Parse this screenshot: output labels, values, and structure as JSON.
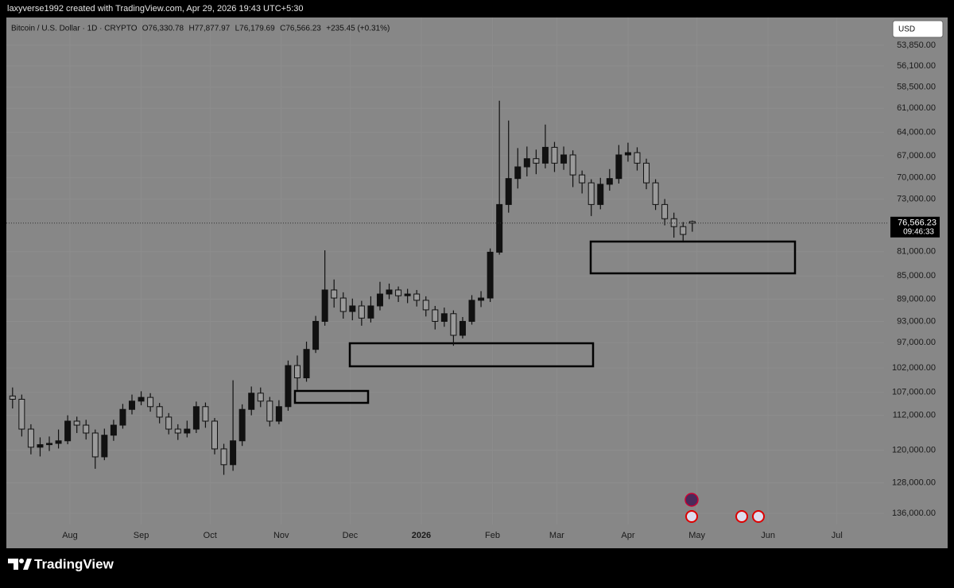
{
  "header": {
    "credit": "laxyverse1992 created with TradingView.com, Apr 29, 2026 19:43 UTC+5:30",
    "symbol": "Bitcoin / U.S. Dollar · 1D · CRYPTO",
    "legend_values": [
      "O76,330.78",
      "H77,877.97",
      "L76,179.69",
      "C76,566.23",
      "+235.45 (+0.31%)"
    ],
    "currency": "USD"
  },
  "chart_data": {
    "type": "candlestick",
    "x": [
      6,
      10,
      14,
      18,
      22,
      26,
      30,
      34,
      38,
      42,
      46,
      50,
      54,
      58,
      62,
      66,
      70,
      74,
      78,
      82,
      86,
      90,
      94,
      98,
      102,
      106,
      110,
      114,
      118,
      122,
      126,
      130,
      134,
      138,
      142,
      146,
      150,
      154,
      158,
      162,
      166,
      170,
      174,
      178,
      182,
      186,
      190,
      194,
      198,
      202,
      206,
      210,
      214,
      218,
      222,
      226,
      230,
      234,
      238,
      242,
      246,
      250,
      254,
      258,
      262,
      266,
      270,
      274,
      278,
      282,
      286,
      290,
      294,
      298,
      302
    ],
    "open": [
      107800,
      108500,
      115100,
      119300,
      118700,
      118400,
      117800,
      113300,
      114200,
      116000,
      121600,
      116500,
      114200,
      110700,
      108900,
      108100,
      110100,
      112400,
      115100,
      116000,
      115100,
      110100,
      113300,
      119700,
      123500,
      117800,
      110700,
      107200,
      108900,
      113300,
      110100,
      101500,
      104000,
      98300,
      93000,
      87400,
      88800,
      91200,
      90200,
      92400,
      90200,
      88100,
      87400,
      88400,
      88100,
      89200,
      90900,
      93000,
      91600,
      95600,
      93000,
      89200,
      88800,
      81100,
      73800,
      70100,
      68500,
      67400,
      68000,
      65900,
      68000,
      66900,
      69600,
      70700,
      73800,
      70900,
      70100,
      66900,
      66600,
      68000,
      70700,
      73800,
      75900,
      77100,
      76330.78
    ],
    "high": [
      110500,
      116800,
      121000,
      121500,
      120200,
      119600,
      118600,
      116000,
      117500,
      124500,
      122400,
      117800,
      115000,
      111800,
      109800,
      111200,
      113800,
      116300,
      117600,
      117000,
      116000,
      114800,
      121000,
      126000,
      125000,
      119000,
      112000,
      110200,
      114500,
      114000,
      111000,
      106500,
      104800,
      99000,
      93800,
      90500,
      92500,
      92800,
      93800,
      93200,
      91000,
      89000,
      89500,
      89700,
      90300,
      92100,
      94500,
      94000,
      97600,
      96200,
      93600,
      90400,
      89500,
      81500,
      75000,
      71500,
      69800,
      69500,
      68700,
      69200,
      68900,
      71300,
      72200,
      75500,
      74500,
      71800,
      70800,
      67800,
      69000,
      71600,
      74600,
      76900,
      78800,
      79400,
      77877.97
    ],
    "low": [
      106000,
      107500,
      114000,
      117000,
      116800,
      115200,
      112000,
      112300,
      113000,
      115200,
      115000,
      113000,
      109500,
      107500,
      106800,
      107200,
      109300,
      111500,
      114000,
      113200,
      109000,
      109200,
      112600,
      118500,
      104500,
      109600,
      105800,
      106000,
      108000,
      108700,
      100500,
      99500,
      96800,
      92000,
      80800,
      85600,
      87800,
      88900,
      89300,
      88500,
      86000,
      86300,
      86800,
      87200,
      87400,
      88500,
      90200,
      90500,
      91000,
      92200,
      88300,
      87600,
      80500,
      60100,
      62500,
      66000,
      65800,
      66200,
      63000,
      65200,
      65800,
      66300,
      69000,
      70200,
      70000,
      68800,
      65600,
      65300,
      65900,
      67400,
      70200,
      73000,
      75000,
      76400,
      76179.69
    ],
    "close": [
      108500,
      115100,
      119300,
      118700,
      118400,
      117800,
      113300,
      114200,
      116000,
      121600,
      116500,
      114200,
      110700,
      108900,
      108100,
      110100,
      112400,
      115100,
      116000,
      115100,
      110100,
      113300,
      119700,
      123500,
      117800,
      110700,
      107200,
      108900,
      113300,
      110100,
      101500,
      104000,
      98300,
      93000,
      87400,
      88800,
      91200,
      90200,
      92400,
      90200,
      88100,
      87400,
      88400,
      88100,
      89200,
      90900,
      93000,
      91600,
      95600,
      93000,
      89200,
      88800,
      81100,
      73800,
      70100,
      68500,
      67400,
      68000,
      65900,
      68000,
      66900,
      69600,
      70700,
      73800,
      70900,
      70100,
      66900,
      66600,
      68000,
      70700,
      73800,
      75900,
      77100,
      78300,
      76566.23
    ],
    "candle_color": "#111111",
    "xlim": [
      3.3,
      385.5
    ],
    "xticks": [
      {
        "value": 31,
        "label": "Aug"
      },
      {
        "value": 62,
        "label": "Sep"
      },
      {
        "value": 92,
        "label": "Oct"
      },
      {
        "value": 123,
        "label": "Nov"
      },
      {
        "value": 153,
        "label": "Dec"
      },
      {
        "value": 184,
        "label": "2026"
      },
      {
        "value": 215,
        "label": "Feb"
      },
      {
        "value": 243,
        "label": "Mar"
      },
      {
        "value": 274,
        "label": "Apr"
      },
      {
        "value": 304,
        "label": "May"
      },
      {
        "value": 335,
        "label": "Jun"
      },
      {
        "value": 365,
        "label": "Jul"
      }
    ],
    "ylim": [
      51000,
      139000
    ],
    "log_y": true,
    "invert_y": true,
    "yticks": [
      {
        "value": 53850,
        "label": "53,850.00"
      },
      {
        "value": 56100,
        "label": "56,100.00"
      },
      {
        "value": 58500,
        "label": "58,500.00"
      },
      {
        "value": 61000,
        "label": "61,000.00"
      },
      {
        "value": 64000,
        "label": "64,000.00"
      },
      {
        "value": 67000,
        "label": "67,000.00"
      },
      {
        "value": 70000,
        "label": "70,000.00"
      },
      {
        "value": 73000,
        "label": "73,000.00"
      },
      {
        "value": 81000,
        "label": "81,000.00"
      },
      {
        "value": 85000,
        "label": "85,000.00"
      },
      {
        "value": 89000,
        "label": "89,000.00"
      },
      {
        "value": 93000,
        "label": "93,000.00"
      },
      {
        "value": 97000,
        "label": "97,000.00"
      },
      {
        "value": 102000,
        "label": "102,000.00"
      },
      {
        "value": 107000,
        "label": "107,000.00"
      },
      {
        "value": 112000,
        "label": "112,000.00"
      },
      {
        "value": 120000,
        "label": "120,000.00"
      },
      {
        "value": 128000,
        "label": "128,000.00"
      },
      {
        "value": 136000,
        "label": "136,000.00"
      }
    ],
    "grid": true,
    "price_tag": {
      "value": 76566.23,
      "label": "76,566.23"
    },
    "countdown": "09:46:33"
  },
  "footer": {
    "brand": "TradingView"
  }
}
